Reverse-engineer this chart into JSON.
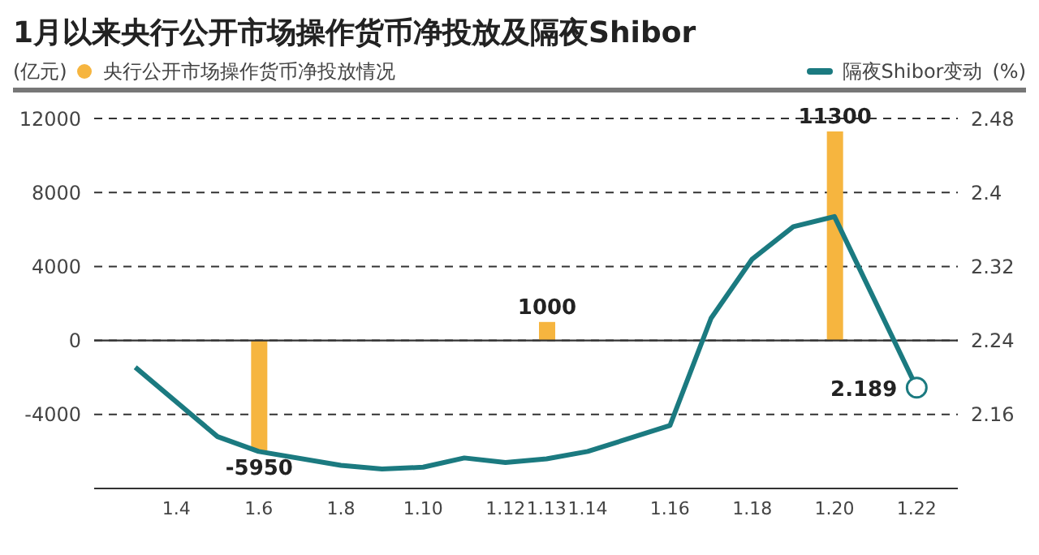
{
  "chart_data": {
    "type": "bar",
    "title": "1月以来央行公开市场操作货币净投放及隔夜Shibor",
    "ylabel": "(亿元)",
    "y2label": "(%)",
    "series": [
      {
        "name": "央行公开市场操作货币净投放情况",
        "color": "#f6b53f",
        "x": [
          "--01-06",
          "--01-13",
          "--01-20"
        ],
        "values": [
          -5950,
          1000,
          11300
        ],
        "value_labels": [
          "-5950",
          "1000",
          "11300"
        ]
      },
      {
        "name": "隔夜Shibor变动",
        "type": "line",
        "axis": "y2",
        "color": "#1b7a80",
        "x": [
          "--01-03",
          "--01-05",
          "--01-06",
          "--01-08",
          "--01-09",
          "--01-10",
          "--01-11",
          "--01-12",
          "--01-13",
          "--01-14",
          "--01-16",
          "--01-17",
          "--01-18",
          "--01-19",
          "--01-20",
          "--01-22"
        ],
        "values": [
          2.211,
          2.136,
          2.12,
          2.105,
          2.101,
          2.103,
          2.113,
          2.108,
          2.112,
          2.12,
          2.148,
          2.264,
          2.328,
          2.363,
          2.374,
          2.189
        ],
        "value_labels": [
          null,
          null,
          null,
          null,
          null,
          null,
          null,
          null,
          null,
          null,
          null,
          null,
          null,
          null,
          null,
          "2.189"
        ]
      }
    ],
    "xlim": [
      "--01-02",
      "--01-23"
    ],
    "xticks": [
      {
        "value": "--01-04",
        "label": "1.4"
      },
      {
        "value": "--01-06",
        "label": "1.6"
      },
      {
        "value": "--01-08",
        "label": "1.8"
      },
      {
        "value": "--01-10",
        "label": "1.10"
      },
      {
        "value": "--01-12",
        "label": "1.12"
      },
      {
        "value": "--01-13",
        "label": "1.13"
      },
      {
        "value": "--01-14",
        "label": "1.14"
      },
      {
        "value": "--01-16",
        "label": "1.16"
      },
      {
        "value": "--01-18",
        "label": "1.18"
      },
      {
        "value": "--01-20",
        "label": "1.20"
      },
      {
        "value": "--01-22",
        "label": "1.22"
      }
    ],
    "ylim": [
      -8000,
      12000
    ],
    "yticks": [
      {
        "value": -4000,
        "label": "-4000"
      },
      0,
      4000,
      8000,
      12000
    ],
    "y2lim": [
      2.08,
      2.48
    ],
    "y2ticks": [
      2.16,
      2.24,
      2.32,
      2.4,
      2.48
    ],
    "ref_lines": [
      {
        "axis": "y",
        "value": 0,
        "color": "#333333"
      }
    ],
    "grid": "y",
    "legend": "top"
  }
}
